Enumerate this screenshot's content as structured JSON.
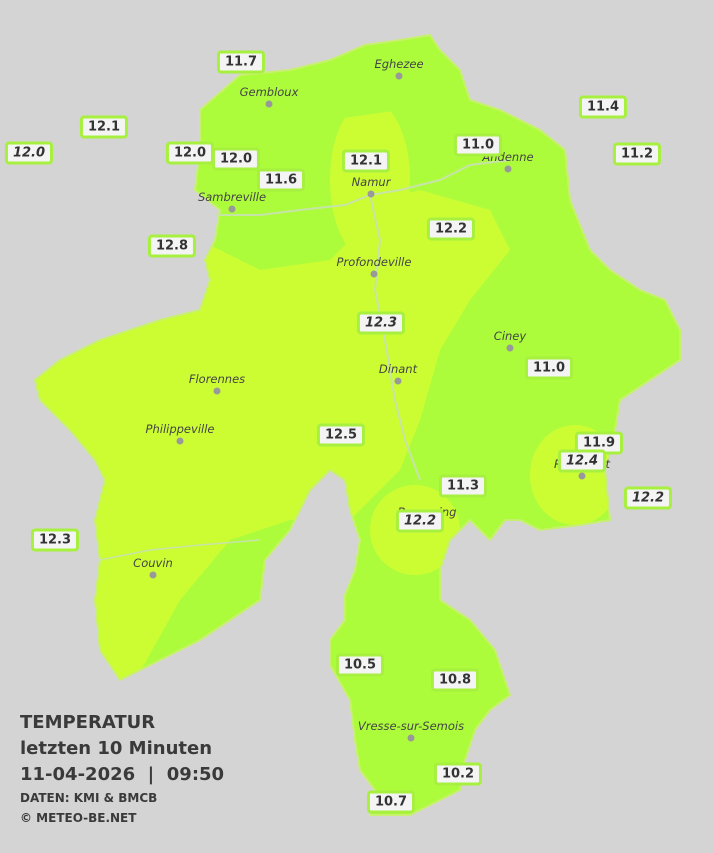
{
  "title": "TEMPERATUR",
  "subtitle": "letzten 10 Minuten",
  "datetime": "11-04-2026  |  09:50",
  "source": "DATEN: KMI & BMCB",
  "copyright": "© METEO-BE.NET",
  "places": [
    "Eghezee",
    "Gembloux",
    "Andenne",
    "Namur",
    "Sambreville",
    "Profondeville",
    "Ciney",
    "Dinant",
    "Florennes",
    "Philippeville",
    "Rochefort",
    "Beauraing",
    "Couvin",
    "Vresse-sur-Semois"
  ],
  "stations": [
    {
      "label": "11.7"
    },
    {
      "label": "12.1"
    },
    {
      "label": "12.0",
      "italic": true
    },
    {
      "label": "12.0"
    },
    {
      "label": "12.0"
    },
    {
      "label": "11.6"
    },
    {
      "label": "12.1"
    },
    {
      "label": "11.0"
    },
    {
      "label": "11.4"
    },
    {
      "label": "11.2"
    },
    {
      "label": "12.8"
    },
    {
      "label": "12.2"
    },
    {
      "label": "12.3",
      "italic": true
    },
    {
      "label": "11.0"
    },
    {
      "label": "12.5"
    },
    {
      "label": "11.9"
    },
    {
      "label": "12.4",
      "italic": true
    },
    {
      "label": "11.3"
    },
    {
      "label": "12.2",
      "italic": true
    },
    {
      "label": "12.2",
      "italic": true
    },
    {
      "label": "12.3"
    },
    {
      "label": "10.5"
    },
    {
      "label": "10.8"
    },
    {
      "label": "10.2"
    },
    {
      "label": "10.7"
    }
  ]
}
